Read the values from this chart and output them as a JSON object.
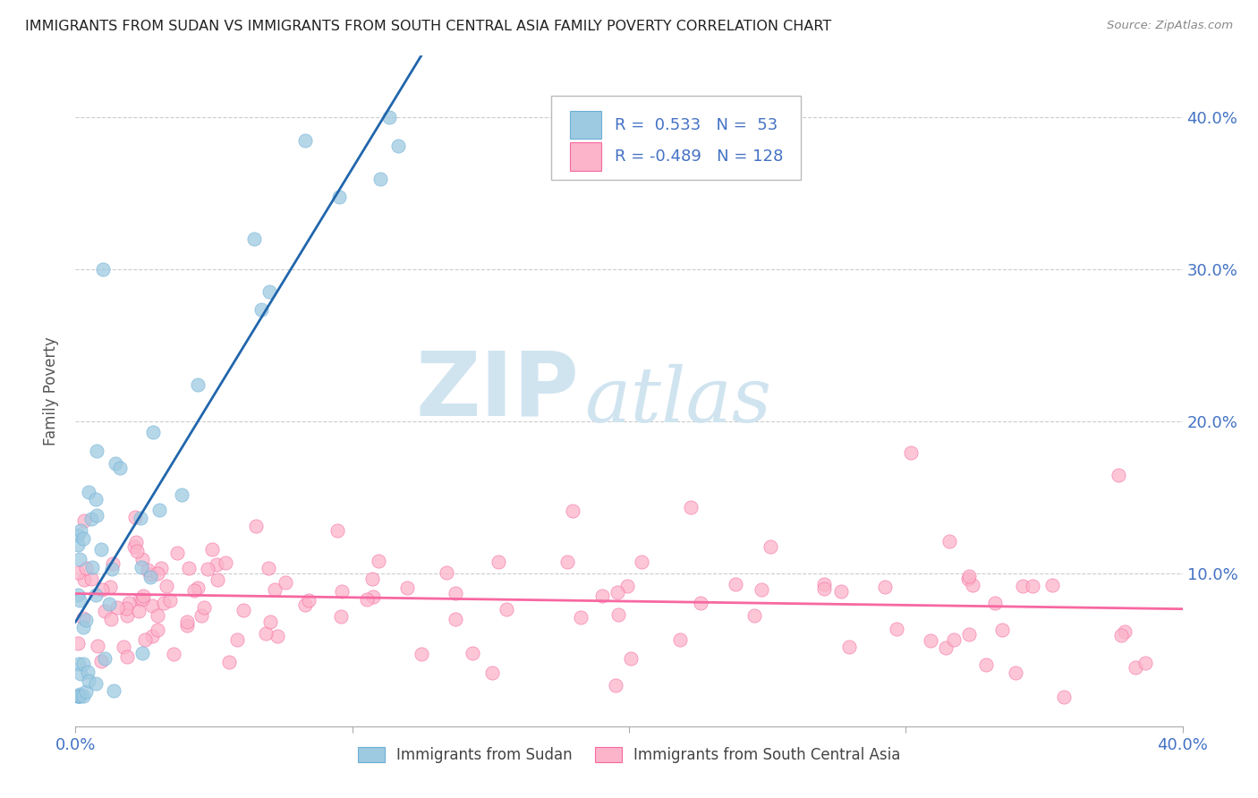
{
  "title": "IMMIGRANTS FROM SUDAN VS IMMIGRANTS FROM SOUTH CENTRAL ASIA FAMILY POVERTY CORRELATION CHART",
  "source": "Source: ZipAtlas.com",
  "ylabel": "Family Poverty",
  "right_yticks": [
    "10.0%",
    "20.0%",
    "30.0%",
    "40.0%"
  ],
  "right_ytick_vals": [
    0.1,
    0.2,
    0.3,
    0.4
  ],
  "xlim": [
    0.0,
    0.4
  ],
  "ylim": [
    0.0,
    0.44
  ],
  "series1_label": "Immigrants from Sudan",
  "series1_color": "#9ecae1",
  "series1_edge": "#6baed6",
  "series1_R": 0.533,
  "series1_N": 53,
  "series2_label": "Immigrants from South Central Asia",
  "series2_color": "#fbb4c9",
  "series2_edge": "#f768a1",
  "series2_R": -0.489,
  "series2_N": 128,
  "watermark_zip": "ZIP",
  "watermark_atlas": "atlas",
  "watermark_color": "#d0e4f0",
  "background_color": "#ffffff",
  "grid_color": "#cccccc",
  "trend1_color": "#2166ac",
  "trend2_color": "#f768a1",
  "title_fontsize": 11.5,
  "axis_label_color": "#4472c4",
  "legend_R_color": "#4472c4"
}
